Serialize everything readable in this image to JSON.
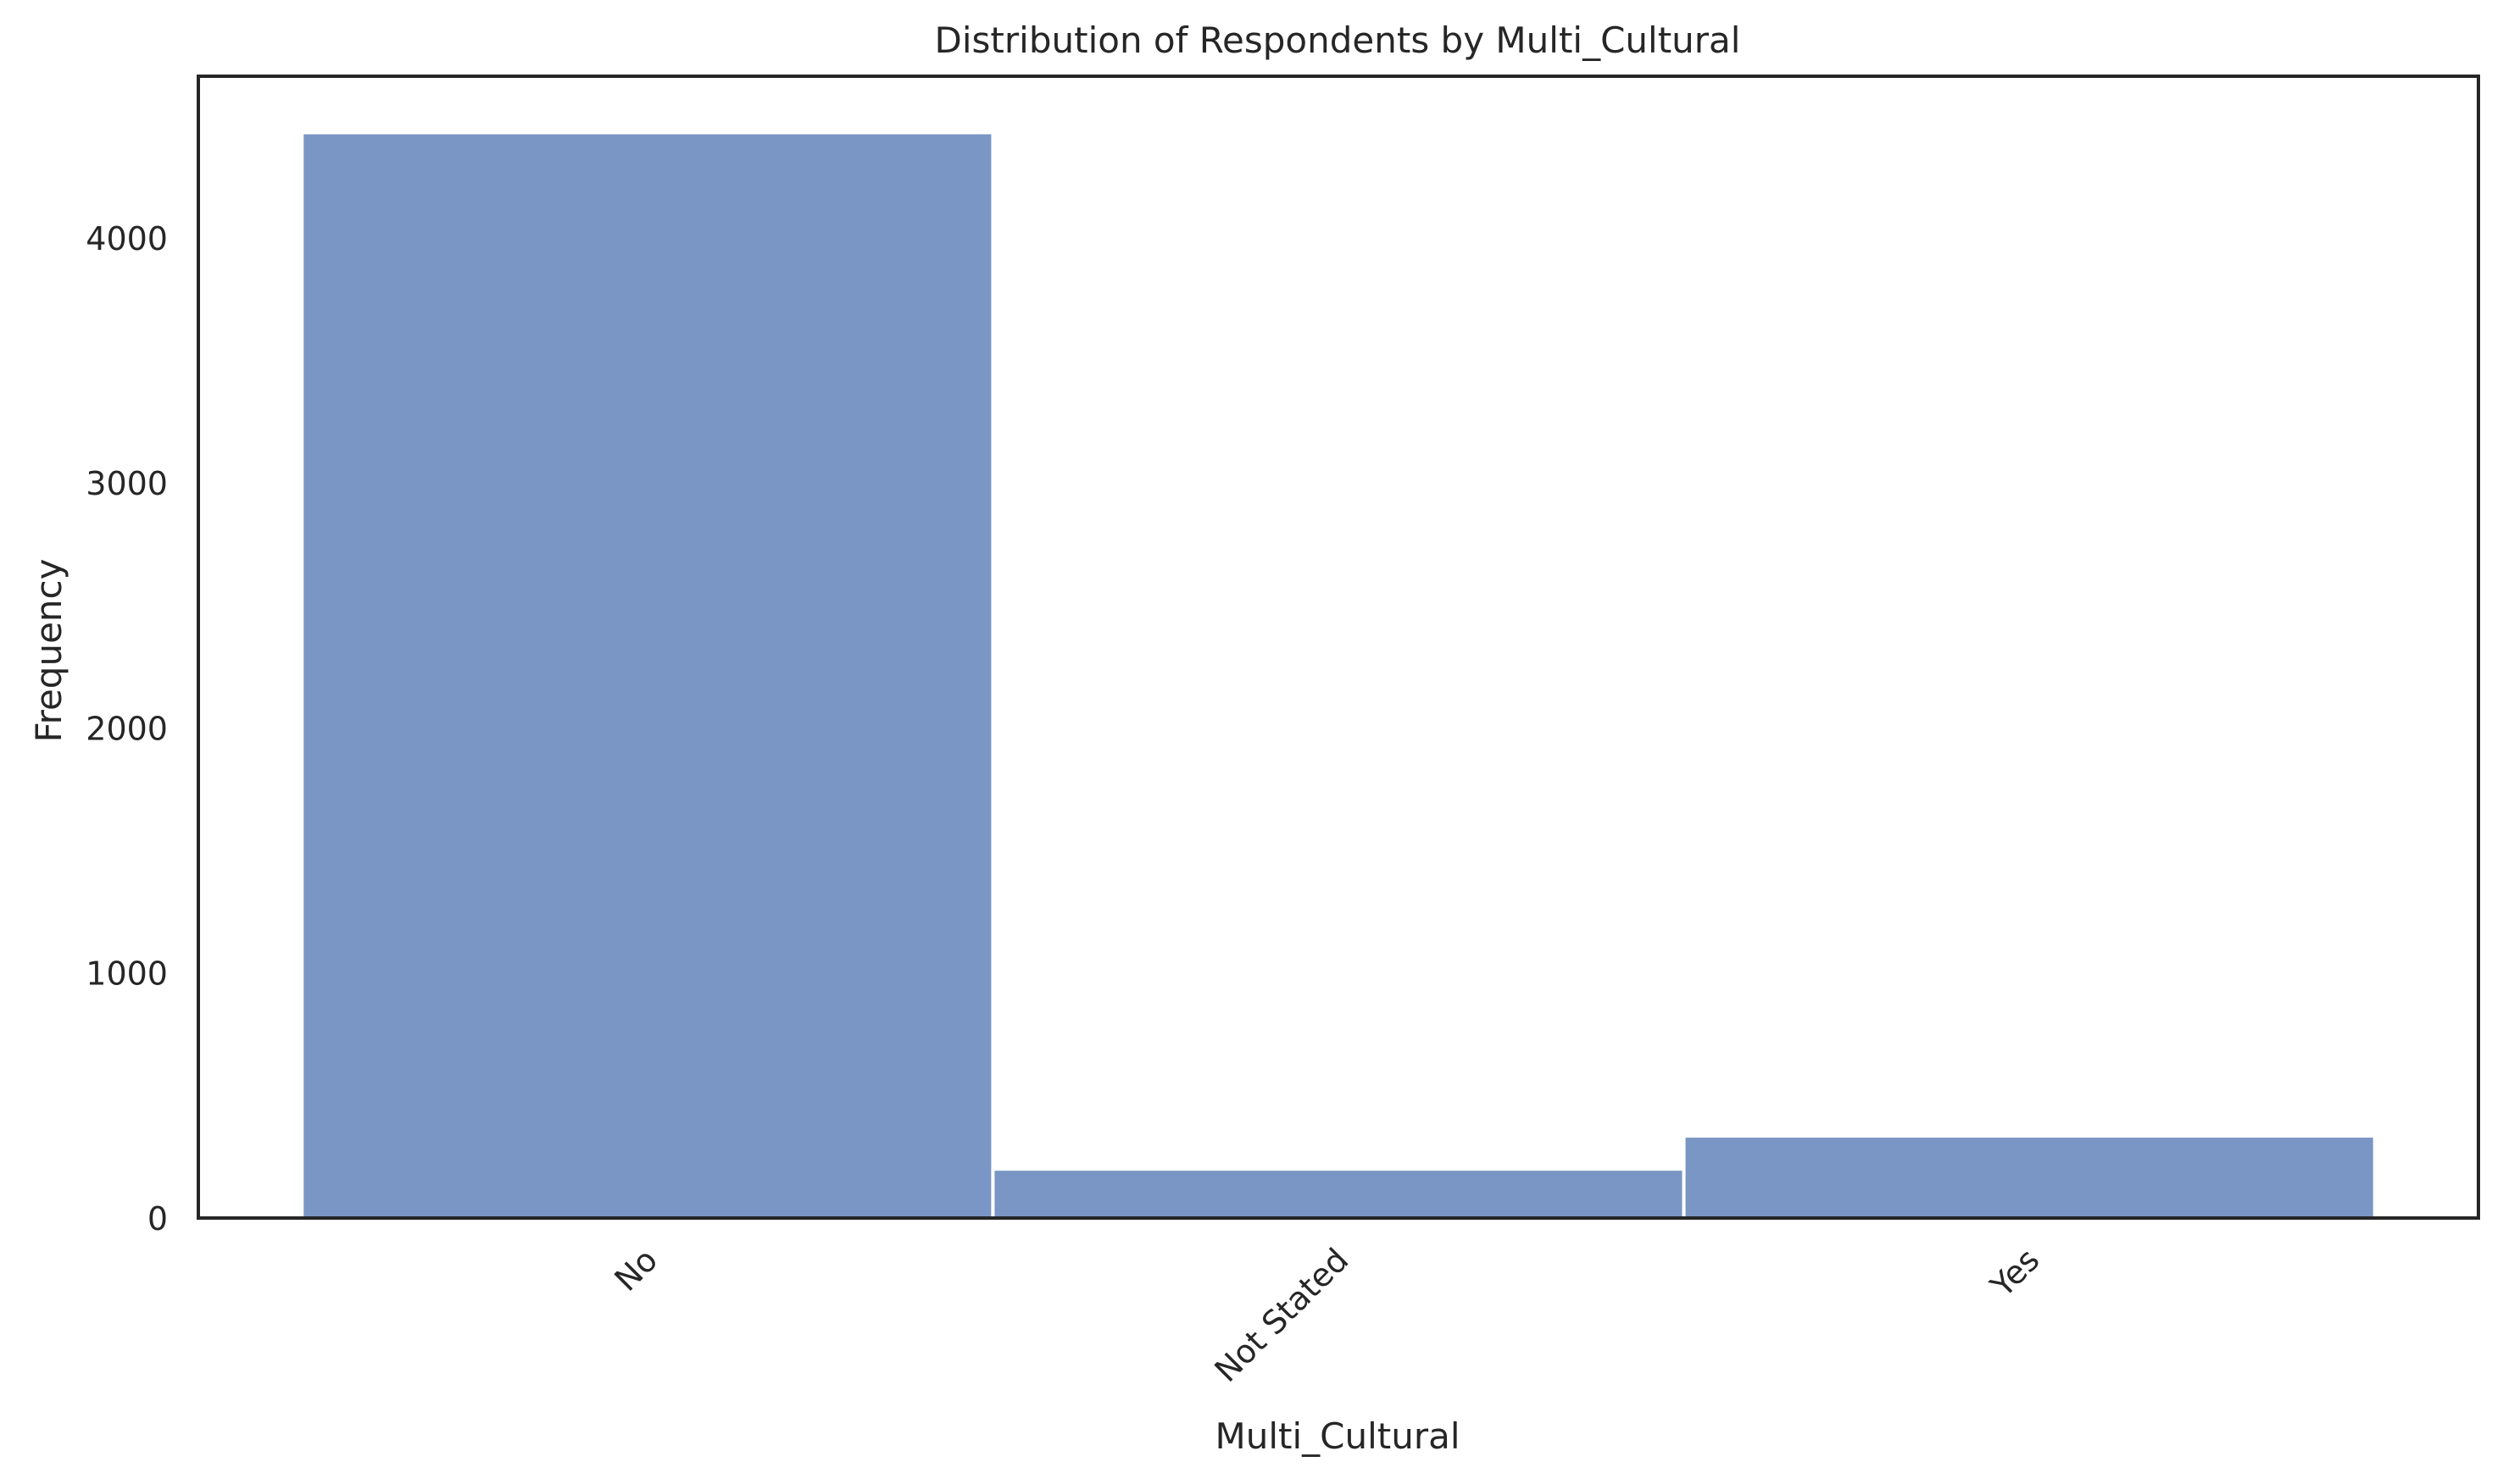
{
  "chart_data": {
    "type": "bar",
    "title": "Distribution of Respondents by Multi_Cultural",
    "xlabel": "Multi_Cultural",
    "ylabel": "Frequency",
    "categories": [
      "No",
      "Not Stated",
      "Yes"
    ],
    "values": [
      4430,
      200,
      335
    ],
    "ylim": [
      0,
      4660
    ],
    "yticks": [
      0,
      1000,
      2000,
      3000,
      4000
    ],
    "ytick_labels": [
      "0",
      "1000",
      "2000",
      "3000",
      "4000"
    ],
    "grid": false,
    "legend": "none",
    "bar_color": "#7996c4",
    "bar_edge_color": "#ffffff",
    "axis_color": "#262626",
    "text_color": "#262626"
  }
}
